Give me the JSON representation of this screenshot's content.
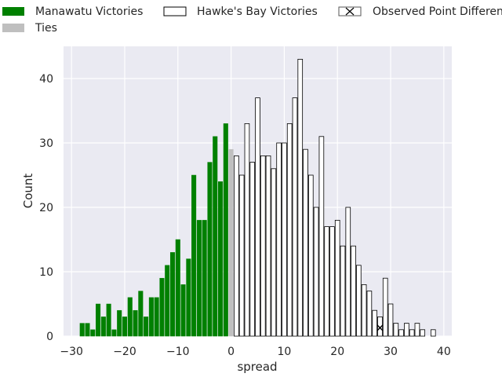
{
  "chart_data": {
    "type": "bar",
    "title": "",
    "xlabel": "spread",
    "ylabel": "Count",
    "xlim": [
      -31.5,
      41.5
    ],
    "ylim": [
      0,
      45
    ],
    "xticks": [
      -30,
      -20,
      -10,
      0,
      10,
      20,
      30,
      40
    ],
    "yticks": [
      0,
      10,
      20,
      30,
      40
    ],
    "grid": true,
    "legend_position": "top",
    "colors": {
      "background": "#eaeaf2",
      "grid": "#ffffff",
      "manawatu": "#008000",
      "ties": "#bfbfbf",
      "hawkes_bay_fill": "#ffffff",
      "bar_edge": "#000000"
    },
    "legend": [
      {
        "label": "Manawatu Victories",
        "swatch": "green"
      },
      {
        "label": "Hawke's Bay Victories",
        "swatch": "white"
      },
      {
        "label": "Observed Point Difference",
        "swatch": "x-marker"
      },
      {
        "label": "Ties",
        "swatch": "grey"
      }
    ],
    "series": [
      {
        "name": "Manawatu Victories",
        "x": [
          -28,
          -27,
          -26,
          -25,
          -24,
          -23,
          -22,
          -21,
          -20,
          -19,
          -18,
          -17,
          -16,
          -15,
          -14,
          -13,
          -12,
          -11,
          -10,
          -9,
          -8,
          -7,
          -6,
          -5,
          -4,
          -3,
          -2,
          -1
        ],
        "values": [
          2,
          2,
          1,
          5,
          3,
          5,
          1,
          4,
          3,
          6,
          4,
          7,
          3,
          6,
          6,
          9,
          11,
          13,
          15,
          8,
          12,
          25,
          18,
          18,
          27,
          31,
          24,
          33
        ]
      },
      {
        "name": "Ties",
        "x": [
          0
        ],
        "values": [
          29
        ]
      },
      {
        "name": "Hawke's Bay Victories",
        "x": [
          1,
          2,
          3,
          4,
          5,
          6,
          7,
          8,
          9,
          10,
          11,
          12,
          13,
          14,
          15,
          16,
          17,
          18,
          19,
          20,
          21,
          22,
          23,
          24,
          25,
          26,
          27,
          28,
          29,
          30,
          31,
          32,
          33,
          34,
          35,
          36,
          37,
          38
        ],
        "values": [
          28,
          25,
          33,
          27,
          37,
          28,
          28,
          26,
          30,
          30,
          33,
          37,
          43,
          29,
          25,
          20,
          31,
          17,
          17,
          18,
          14,
          20,
          14,
          11,
          8,
          7,
          4,
          3,
          9,
          5,
          2,
          1,
          2,
          1,
          2,
          1,
          0,
          1
        ]
      }
    ],
    "observed_point_difference": {
      "x": 28,
      "y": 1.3
    }
  }
}
